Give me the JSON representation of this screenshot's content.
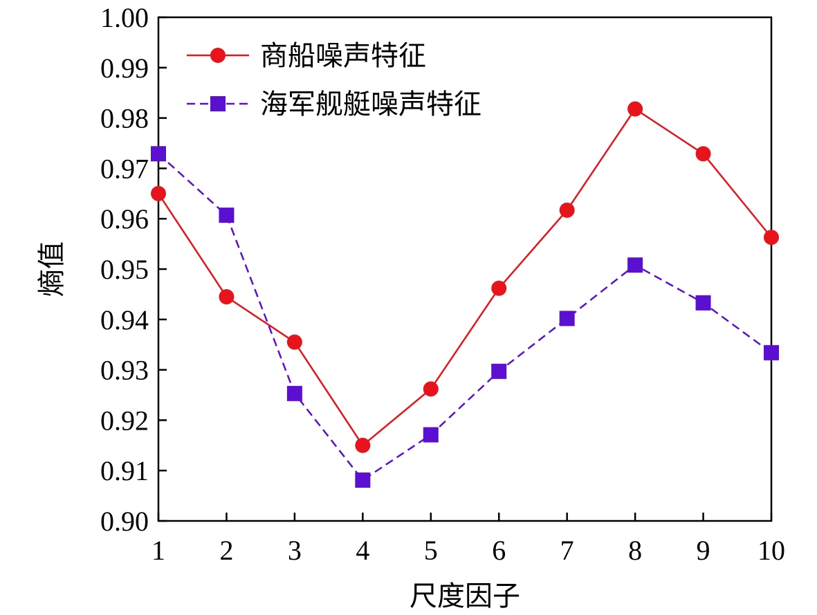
{
  "chart_data": {
    "type": "line",
    "title": "",
    "xlabel": "尺度因子",
    "ylabel": "熵值",
    "xlim": [
      1,
      10
    ],
    "ylim": [
      0.9,
      1.0
    ],
    "x": [
      1,
      2,
      3,
      4,
      5,
      6,
      7,
      8,
      9,
      10
    ],
    "x_tick_labels": [
      "1",
      "2",
      "3",
      "4",
      "5",
      "6",
      "7",
      "8",
      "9",
      "10"
    ],
    "y_ticks": [
      0.9,
      0.91,
      0.92,
      0.93,
      0.94,
      0.95,
      0.96,
      0.97,
      0.98,
      0.99,
      1.0
    ],
    "y_tick_labels": [
      "0.90",
      "0.91",
      "0.92",
      "0.93",
      "0.94",
      "0.95",
      "0.96",
      "0.97",
      "0.98",
      "0.99",
      "1.00"
    ],
    "grid": false,
    "legend_position": "top-left",
    "series": [
      {
        "name": "商船噪声特征",
        "color": "#e8141c",
        "marker": "circle",
        "line_style": "solid",
        "values": [
          0.965,
          0.9445,
          0.9355,
          0.915,
          0.9262,
          0.9462,
          0.9617,
          0.9818,
          0.9729,
          0.9563
        ]
      },
      {
        "name": "海军舰艇噪声特征",
        "color": "#5b0fd0",
        "marker": "square",
        "line_style": "dashed",
        "values": [
          0.9729,
          0.9607,
          0.9253,
          0.9081,
          0.9171,
          0.9297,
          0.9402,
          0.9508,
          0.9433,
          0.9334
        ]
      }
    ]
  }
}
